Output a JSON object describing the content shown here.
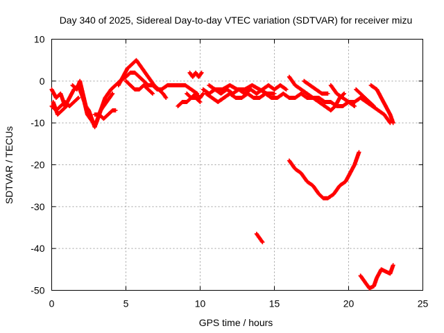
{
  "chart_data": {
    "type": "scatter",
    "title": "Day 340 of 2025, Sidereal Day-to-day VTEC variation (SDTVAR) for receiver mizu",
    "xlabel": "GPS time / hours",
    "ylabel": "SDTVAR / TECUs",
    "xlim": [
      0,
      25
    ],
    "ylim": [
      -50,
      10
    ],
    "xticks": [
      0,
      5,
      10,
      15,
      20,
      25
    ],
    "yticks": [
      -50,
      -40,
      -30,
      -20,
      -10,
      0,
      10
    ],
    "grid": true,
    "series": [
      {
        "name": "SDTVAR",
        "color": "#ff0000",
        "marker": "plus",
        "tracks": [
          [
            [
              0.0,
              -2
            ],
            [
              0.3,
              -4
            ],
            [
              0.6,
              -3
            ],
            [
              0.9,
              -6
            ],
            [
              1.2,
              -4
            ],
            [
              1.5,
              -2
            ],
            [
              1.8,
              -1
            ],
            [
              2.0,
              -3
            ],
            [
              2.2,
              -5
            ],
            [
              2.4,
              -8
            ],
            [
              2.6,
              -9
            ],
            [
              2.8,
              -10
            ],
            [
              3.0,
              -10
            ],
            [
              3.2,
              -8
            ],
            [
              3.4,
              -6
            ],
            [
              3.6,
              -4
            ],
            [
              3.8,
              -3
            ],
            [
              4.0,
              -2
            ],
            [
              4.3,
              -1
            ],
            [
              4.6,
              0
            ],
            [
              5.0,
              1
            ],
            [
              5.3,
              2
            ],
            [
              5.6,
              2
            ],
            [
              5.9,
              1
            ],
            [
              6.2,
              0
            ],
            [
              6.5,
              -1
            ],
            [
              6.8,
              -1
            ],
            [
              7.1,
              -2
            ],
            [
              7.4,
              -2
            ],
            [
              7.8,
              -1
            ],
            [
              8.2,
              -1
            ],
            [
              8.6,
              -1
            ],
            [
              9.0,
              -1
            ],
            [
              9.4,
              -2
            ],
            [
              9.8,
              -3
            ]
          ],
          [
            [
              0.0,
              -6
            ],
            [
              0.3,
              -7
            ],
            [
              0.6,
              -6
            ],
            [
              0.9,
              -5
            ],
            [
              1.2,
              -6
            ],
            [
              1.5,
              -5
            ],
            [
              1.8,
              -4
            ]
          ],
          [
            [
              0.1,
              -5
            ],
            [
              0.4,
              -8
            ],
            [
              0.7,
              -7
            ],
            [
              1.0,
              -6
            ]
          ],
          [
            [
              1.4,
              -1
            ],
            [
              1.7,
              -2
            ],
            [
              1.9,
              0
            ],
            [
              2.1,
              -3
            ],
            [
              2.3,
              -6
            ],
            [
              2.5,
              -7
            ],
            [
              2.7,
              -9
            ],
            [
              2.9,
              -11
            ],
            [
              3.1,
              -9
            ],
            [
              3.3,
              -7
            ],
            [
              3.5,
              -6
            ],
            [
              3.7,
              -5
            ],
            [
              3.9,
              -4
            ],
            [
              4.1,
              -3
            ]
          ],
          [
            [
              2.9,
              -8
            ],
            [
              3.2,
              -8
            ],
            [
              3.5,
              -9
            ],
            [
              3.8,
              -8
            ],
            [
              4.1,
              -7
            ],
            [
              4.3,
              -7
            ]
          ],
          [
            [
              4.5,
              -1
            ],
            [
              4.8,
              1
            ],
            [
              5.1,
              3
            ],
            [
              5.4,
              4
            ],
            [
              5.7,
              5
            ],
            [
              5.9,
              4
            ],
            [
              6.1,
              3
            ],
            [
              6.3,
              2
            ],
            [
              6.5,
              1
            ],
            [
              6.7,
              0
            ],
            [
              6.9,
              -1
            ],
            [
              7.2,
              -2
            ],
            [
              7.5,
              -3
            ],
            [
              7.7,
              -4
            ]
          ],
          [
            [
              5.0,
              0
            ],
            [
              5.3,
              -1
            ],
            [
              5.6,
              -2
            ],
            [
              5.9,
              -2
            ],
            [
              6.2,
              -1
            ],
            [
              6.5,
              -2
            ],
            [
              6.8,
              -3
            ]
          ],
          [
            [
              8.5,
              -6
            ],
            [
              8.8,
              -5
            ],
            [
              9.1,
              -5
            ],
            [
              9.4,
              -4
            ],
            [
              9.7,
              -4
            ],
            [
              10.0,
              -5
            ]
          ],
          [
            [
              9.1,
              -3
            ],
            [
              9.4,
              -4
            ],
            [
              9.7,
              -3
            ],
            [
              10.0,
              -4
            ],
            [
              10.2,
              -3
            ]
          ],
          [
            [
              9.3,
              2
            ],
            [
              9.5,
              1
            ],
            [
              9.7,
              2
            ],
            [
              9.9,
              1
            ],
            [
              10.1,
              2
            ]
          ],
          [
            [
              10.2,
              -2
            ],
            [
              10.6,
              -3
            ],
            [
              11.0,
              -2
            ],
            [
              11.4,
              -3
            ],
            [
              11.8,
              -2
            ],
            [
              12.2,
              -3
            ],
            [
              12.6,
              -2
            ],
            [
              13.0,
              -3
            ],
            [
              13.4,
              -2
            ],
            [
              13.8,
              -3
            ],
            [
              14.2,
              -2
            ],
            [
              14.6,
              -1
            ],
            [
              15.0,
              -2
            ],
            [
              15.4,
              -1
            ],
            [
              15.8,
              -2
            ]
          ],
          [
            [
              10.4,
              -3
            ],
            [
              10.8,
              -4
            ],
            [
              11.2,
              -5
            ],
            [
              11.6,
              -4
            ],
            [
              12.0,
              -3
            ],
            [
              12.4,
              -4
            ],
            [
              12.8,
              -4
            ],
            [
              13.2,
              -3
            ],
            [
              13.6,
              -4
            ],
            [
              14.0,
              -4
            ],
            [
              14.4,
              -3
            ],
            [
              14.8,
              -4
            ],
            [
              15.2,
              -4
            ],
            [
              15.6,
              -3
            ],
            [
              16.0,
              -4
            ],
            [
              16.4,
              -4
            ],
            [
              16.8,
              -3
            ],
            [
              17.2,
              -4
            ],
            [
              17.6,
              -4
            ],
            [
              18.0,
              -4
            ],
            [
              18.4,
              -5
            ],
            [
              18.8,
              -5
            ],
            [
              19.2,
              -6
            ],
            [
              19.6,
              -6
            ],
            [
              20.0,
              -5
            ],
            [
              20.4,
              -5
            ],
            [
              20.8,
              -4
            ],
            [
              21.2,
              -5
            ],
            [
              21.6,
              -6
            ],
            [
              22.0,
              -7
            ],
            [
              22.4,
              -8
            ],
            [
              22.8,
              -10
            ]
          ],
          [
            [
              10.6,
              -1
            ],
            [
              11.0,
              -2
            ],
            [
              11.5,
              -2
            ],
            [
              12.0,
              -1
            ],
            [
              12.5,
              -2
            ],
            [
              13.0,
              -2
            ],
            [
              13.5,
              -1
            ],
            [
              14.0,
              -2
            ],
            [
              14.5,
              -3
            ],
            [
              15.0,
              -3
            ]
          ],
          [
            [
              16.0,
              1
            ],
            [
              16.4,
              -1
            ],
            [
              16.8,
              -2
            ],
            [
              17.2,
              -3
            ],
            [
              17.6,
              -4
            ],
            [
              18.0,
              -5
            ],
            [
              18.4,
              -6
            ],
            [
              18.8,
              -7
            ],
            [
              19.1,
              -6
            ],
            [
              19.4,
              -4
            ],
            [
              19.7,
              -3
            ]
          ],
          [
            [
              17.0,
              0
            ],
            [
              17.4,
              -1
            ],
            [
              17.8,
              -2
            ],
            [
              18.2,
              -3
            ],
            [
              18.6,
              -3
            ]
          ],
          [
            [
              18.8,
              -1
            ],
            [
              19.2,
              -3
            ],
            [
              19.6,
              -4
            ],
            [
              20.0,
              -5
            ],
            [
              20.4,
              -6
            ]
          ],
          [
            [
              20.5,
              -2
            ],
            [
              20.8,
              -3
            ],
            [
              21.1,
              -4
            ],
            [
              21.4,
              -5
            ],
            [
              21.7,
              -6
            ]
          ],
          [
            [
              21.5,
              -1
            ],
            [
              21.9,
              -2
            ],
            [
              22.2,
              -4
            ],
            [
              22.5,
              -6
            ],
            [
              22.8,
              -8
            ],
            [
              23.0,
              -10
            ]
          ],
          [
            [
              16.0,
              -19
            ],
            [
              16.4,
              -21
            ],
            [
              16.8,
              -22
            ],
            [
              17.2,
              -24
            ],
            [
              17.6,
              -25
            ],
            [
              18.0,
              -27
            ],
            [
              18.3,
              -28
            ],
            [
              18.6,
              -28
            ],
            [
              19.0,
              -27
            ],
            [
              19.4,
              -25
            ],
            [
              19.8,
              -24
            ],
            [
              20.1,
              -22
            ],
            [
              20.4,
              -20
            ],
            [
              20.6,
              -18
            ],
            [
              20.7,
              -17
            ]
          ],
          [
            [
              13.8,
              -36.5
            ],
            [
              14.0,
              -37.5
            ],
            [
              14.2,
              -38.5
            ]
          ],
          [
            [
              20.8,
              -46.5
            ],
            [
              21.1,
              -48
            ],
            [
              21.4,
              -49.5
            ],
            [
              21.7,
              -49
            ],
            [
              21.9,
              -47
            ],
            [
              22.2,
              -45
            ],
            [
              22.5,
              -45.5
            ],
            [
              22.8,
              -46
            ],
            [
              23.0,
              -44
            ]
          ]
        ]
      }
    ]
  }
}
